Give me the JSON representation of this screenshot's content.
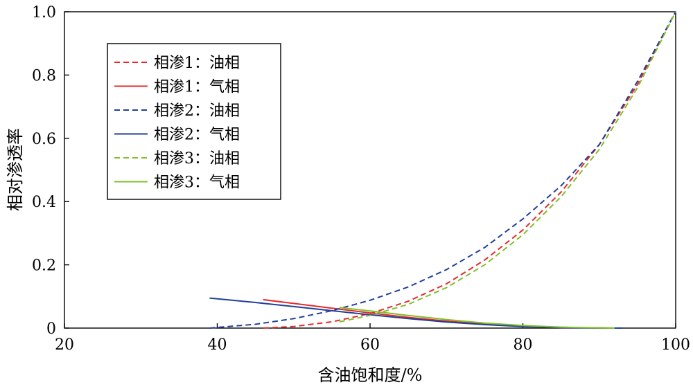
{
  "chart_data": {
    "type": "line",
    "title": "",
    "xlabel": "含油饱和度/%",
    "ylabel": "相对渗透率",
    "xlim": [
      20,
      100
    ],
    "ylim": [
      0,
      1.0
    ],
    "xticks": [
      20,
      40,
      60,
      80,
      100
    ],
    "yticks": [
      0,
      0.2,
      0.4,
      0.6,
      0.8,
      1.0
    ],
    "xtick_labels": [
      "20",
      "40",
      "60",
      "80",
      "100"
    ],
    "ytick_labels": [
      "0",
      "0.2",
      "0.4",
      "0.6",
      "0.8",
      "1.0"
    ],
    "grid": false,
    "legend_position": "top-left",
    "series": [
      {
        "name": "相渗1：油相",
        "color": "#e8282a",
        "dash": "dashed",
        "x": [
          46,
          50,
          55,
          60,
          65,
          70,
          75,
          80,
          85,
          90,
          95,
          100
        ],
        "y": [
          0,
          0.005,
          0.02,
          0.046,
          0.085,
          0.14,
          0.215,
          0.31,
          0.43,
          0.58,
          0.77,
          1.0
        ]
      },
      {
        "name": "相渗1：气相",
        "color": "#e8282a",
        "dash": "solid",
        "x": [
          46,
          50,
          55,
          60,
          65,
          70,
          75,
          80,
          85,
          90,
          92
        ],
        "y": [
          0.09,
          0.078,
          0.063,
          0.048,
          0.034,
          0.022,
          0.013,
          0.006,
          0.002,
          0.0005,
          0
        ]
      },
      {
        "name": "相渗2：油相",
        "color": "#1f3f9a",
        "dash": "dashed",
        "x": [
          39,
          45,
          50,
          55,
          60,
          65,
          70,
          75,
          80,
          85,
          90,
          95,
          100
        ],
        "y": [
          0,
          0.012,
          0.03,
          0.055,
          0.088,
          0.13,
          0.185,
          0.255,
          0.345,
          0.45,
          0.58,
          0.78,
          1.0
        ]
      },
      {
        "name": "相渗2：气相",
        "color": "#1f3f9a",
        "dash": "solid",
        "x": [
          39,
          45,
          50,
          55,
          60,
          65,
          70,
          75,
          80,
          85,
          90,
          93
        ],
        "y": [
          0.095,
          0.081,
          0.068,
          0.055,
          0.042,
          0.03,
          0.019,
          0.011,
          0.005,
          0.0015,
          0.0003,
          0
        ]
      },
      {
        "name": "相渗3：油相",
        "color": "#7fbf2a",
        "dash": "dashed",
        "x": [
          56,
          60,
          65,
          70,
          75,
          80,
          85,
          90,
          95,
          100
        ],
        "y": [
          0.02,
          0.04,
          0.075,
          0.128,
          0.2,
          0.295,
          0.415,
          0.565,
          0.76,
          1.0
        ]
      },
      {
        "name": "相渗3：气相",
        "color": "#7fbf2a",
        "dash": "solid",
        "x": [
          56,
          60,
          65,
          70,
          75,
          80,
          85,
          90,
          92
        ],
        "y": [
          0.065,
          0.054,
          0.04,
          0.027,
          0.016,
          0.008,
          0.003,
          0.0005,
          0
        ]
      }
    ]
  }
}
